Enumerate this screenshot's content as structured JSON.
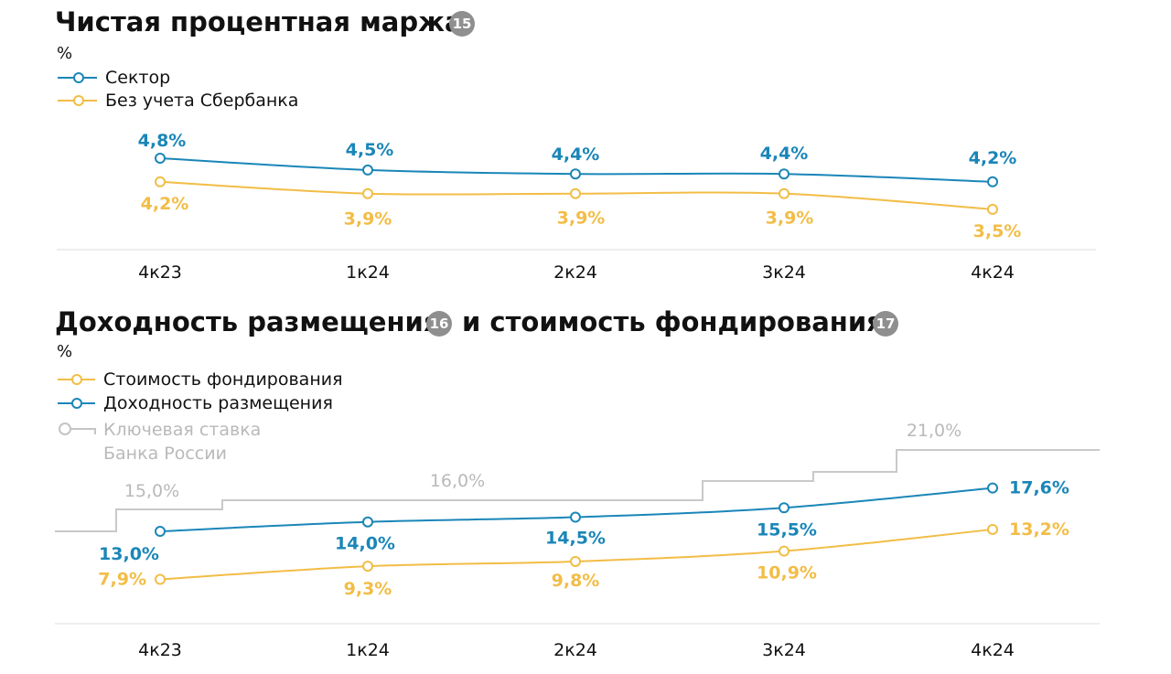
{
  "colors": {
    "blue": "#1a86b8",
    "yellow": "#f2bd46",
    "grey": "#c4c4c4",
    "badge": "#8f8f8f"
  },
  "chart_data": [
    {
      "type": "line",
      "title": "Чистая процентная маржа",
      "badge": "15",
      "unit": "%",
      "categories": [
        "4к23",
        "1к24",
        "2к24",
        "3к24",
        "4к24"
      ],
      "series": [
        {
          "name": "Сектор",
          "color": "#1a86b8",
          "values": [
            4.8,
            4.5,
            4.4,
            4.4,
            4.2
          ],
          "labels": [
            "4,8%",
            "4,5%",
            "4,4%",
            "4,4%",
            "4,2%"
          ]
        },
        {
          "name": "Без учета Сбербанка",
          "color": "#f2bd46",
          "values": [
            4.2,
            3.9,
            3.9,
            3.9,
            3.5
          ],
          "labels": [
            "4,2%",
            "3,9%",
            "3,9%",
            "3,9%",
            "3,5%"
          ]
        }
      ],
      "legend": "top-left",
      "grid": false
    },
    {
      "type": "line",
      "title_part1": "Доходность размещения",
      "badge1": "16",
      "title_part2": "и стоимость фондирования",
      "badge2": "17",
      "unit": "%",
      "categories": [
        "4к23",
        "1к24",
        "2к24",
        "3к24",
        "4к24"
      ],
      "series": [
        {
          "name": "Стоимость фондирования",
          "color": "#f2bd46",
          "values": [
            7.9,
            9.3,
            9.8,
            10.9,
            13.2
          ],
          "labels": [
            "7,9%",
            "9,3%",
            "9,8%",
            "10,9%",
            "13,2%"
          ]
        },
        {
          "name": "Доходность размещения",
          "color": "#1a86b8",
          "values": [
            13.0,
            14.0,
            14.5,
            15.5,
            17.6
          ],
          "labels": [
            "13,0%",
            "14,0%",
            "14,5%",
            "15,5%",
            "17,6%"
          ]
        }
      ],
      "key_rate": {
        "name_line1": "Ключевая ставка",
        "name_line2": "Банка России",
        "color": "#c4c4c4",
        "labels": [
          "15,0%",
          "16,0%",
          "21,0%"
        ]
      },
      "legend": "top-left",
      "grid": false
    }
  ]
}
